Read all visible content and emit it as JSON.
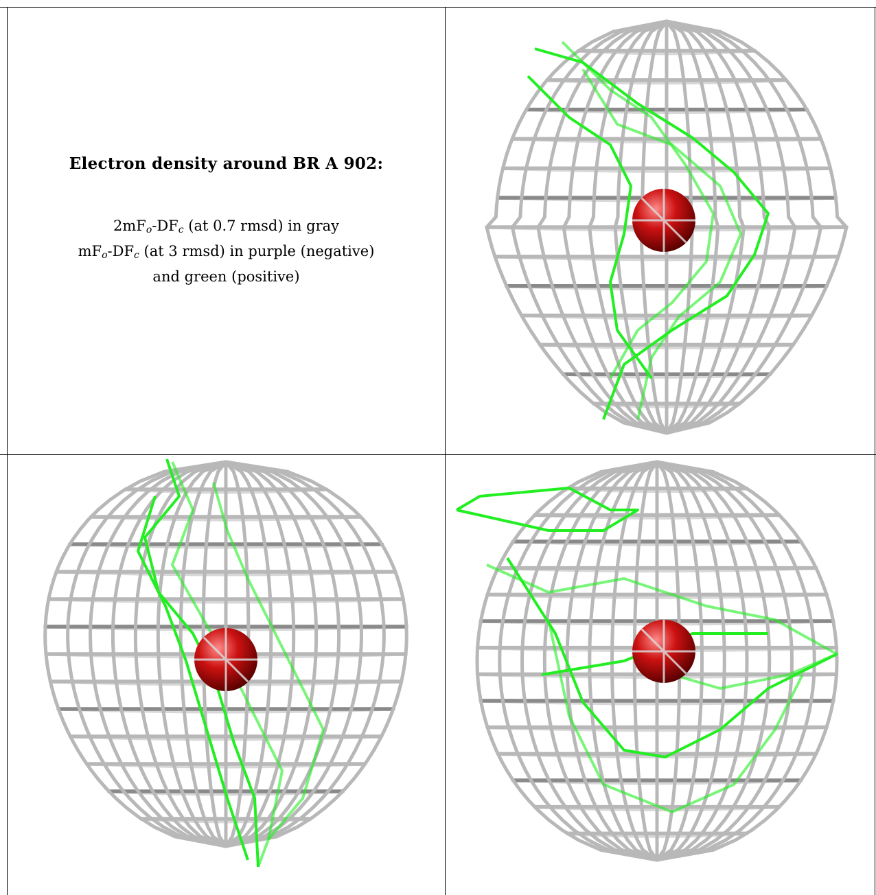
{
  "legend": {
    "title": "Electron density around BR A 902:",
    "line1": {
      "prefix": "2mF",
      "s1": "o",
      "mid": "-DF",
      "s2": "c",
      "suffix": " (at 0.7 rmsd) in gray"
    },
    "line2": {
      "prefix": "mF",
      "s1": "o",
      "mid": "-DF",
      "s2": "c",
      "suffix": " (at 3 rmsd) in purple (negative)"
    },
    "line3": "and green (positive)"
  },
  "colors": {
    "mesh_gray": "#b8b8b8",
    "mesh_dark": "#8a8a8a",
    "mesh_green": "#22ee22",
    "atom_red": "#cc1111"
  },
  "panels": [
    {
      "name": "view-top-right",
      "atom": "BR A 902"
    },
    {
      "name": "view-bottom-left",
      "atom": "BR A 902"
    },
    {
      "name": "view-bottom-right",
      "atom": "BR A 902"
    }
  ]
}
